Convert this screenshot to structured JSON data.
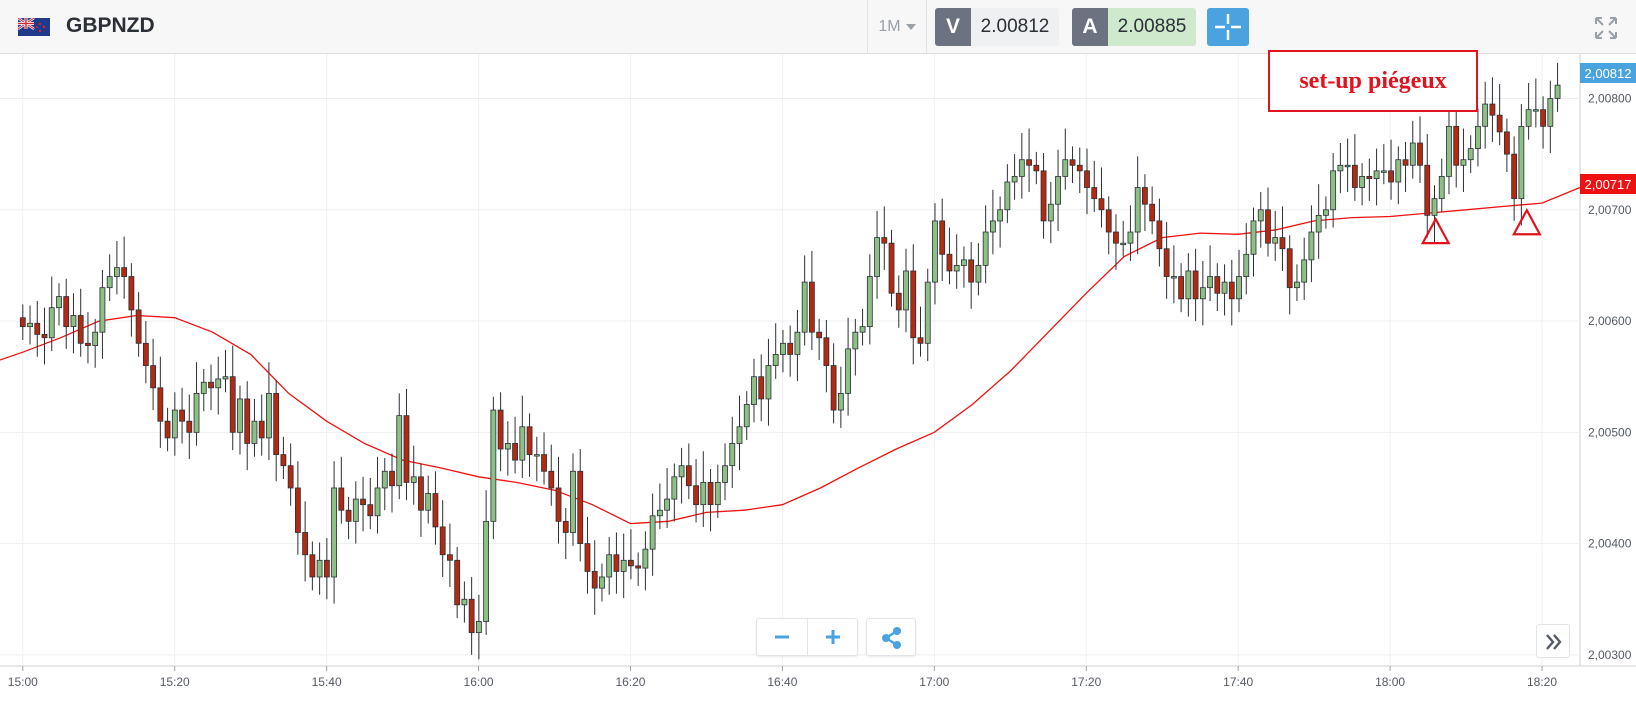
{
  "header": {
    "symbol": "GBPNZD",
    "flag_icon": "gb-nz-flag-icon",
    "timeframe": "1M",
    "sell_label": "V",
    "sell_price": "2.00812",
    "buy_label": "A",
    "buy_price": "2.00885"
  },
  "annotation": {
    "text": "set-up piégeux"
  },
  "price_labels": {
    "current": "2,00812",
    "ma": "2,00717"
  },
  "colors": {
    "bull": "#8cc084",
    "bear": "#b22a12",
    "ma_line": "#ee1111",
    "accent": "#4aa3df",
    "annotation": "#e0141e"
  },
  "chart_data": {
    "type": "candlestick",
    "title": "",
    "xlabel": "",
    "ylabel": "",
    "ylim": [
      2.0029,
      2.0084
    ],
    "y_ticks": [
      "2,00300",
      "2,00400",
      "2,00500",
      "2,00600",
      "2,00700",
      "2,00800"
    ],
    "y_tick_values": [
      2.003,
      2.004,
      2.005,
      2.006,
      2.007,
      2.008
    ],
    "x_ticks": [
      "15:00",
      "15:20",
      "15:40",
      "16:00",
      "16:20",
      "16:40",
      "17:00",
      "17:20",
      "17:40",
      "18:00",
      "18:20"
    ],
    "x_start_minute": 0,
    "x_tick_minutes": [
      0,
      20,
      40,
      60,
      80,
      100,
      120,
      140,
      160,
      180,
      200
    ],
    "x_range_minutes": [
      -3,
      205
    ],
    "grid": true,
    "close": [
      2.00595,
      2.00598,
      2.00588,
      2.00585,
      2.00612,
      2.00622,
      2.00595,
      2.00605,
      2.0058,
      2.00578,
      2.0059,
      2.0063,
      2.0064,
      2.00648,
      2.0064,
      2.0061,
      2.0058,
      2.0056,
      2.0054,
      2.0051,
      2.00495,
      2.0052,
      2.0051,
      2.005,
      2.00535,
      2.00545,
      2.0054,
      2.00548,
      2.0055,
      2.005,
      2.0053,
      2.0049,
      2.0051,
      2.00495,
      2.00535,
      2.0048,
      2.0047,
      2.0045,
      2.0041,
      2.0039,
      2.0037,
      2.00385,
      2.0037,
      2.0045,
      2.0043,
      2.0042,
      2.0044,
      2.00435,
      2.00425,
      2.0045,
      2.00465,
      2.00452,
      2.00515,
      2.00455,
      2.0046,
      2.0043,
      2.00445,
      2.00415,
      2.0039,
      2.00385,
      2.00345,
      2.0035,
      2.0032,
      2.0033,
      2.0042,
      2.0052,
      2.00485,
      2.0049,
      2.00475,
      2.00505,
      2.0048,
      2.0048,
      2.00465,
      2.0045,
      2.0042,
      2.0041,
      2.00465,
      2.004,
      2.00375,
      2.0036,
      2.0037,
      2.0039,
      2.00375,
      2.00385,
      2.0038,
      2.00378,
      2.00395,
      2.00425,
      2.0043,
      2.0044,
      2.0046,
      2.0047,
      2.00452,
      2.00435,
      2.00455,
      2.00435,
      2.00455,
      2.0047,
      2.0049,
      2.00505,
      2.00525,
      2.0055,
      2.0053,
      2.0056,
      2.0057,
      2.0058,
      2.0057,
      2.0059,
      2.00635,
      2.0059,
      2.00585,
      2.0056,
      2.0052,
      2.00535,
      2.00575,
      2.0059,
      2.00595,
      2.0064,
      2.00675,
      2.0067,
      2.00625,
      2.0061,
      2.00645,
      2.00585,
      2.0058,
      2.00635,
      2.0069,
      2.0066,
      2.00645,
      2.0065,
      2.00655,
      2.00635,
      2.0065,
      2.0068,
      2.0069,
      2.007,
      2.00725,
      2.0073,
      2.00745,
      2.0074,
      2.00735,
      2.0069,
      2.00705,
      2.0073,
      2.00745,
      2.0074,
      2.00735,
      2.0072,
      2.0071,
      2.007,
      2.0068,
      2.0067,
      2.0067,
      2.0068,
      2.0072,
      2.00705,
      2.0069,
      2.00665,
      2.0064,
      2.0064,
      2.0062,
      2.00645,
      2.0062,
      2.0063,
      2.0064,
      2.00625,
      2.00635,
      2.0062,
      2.0064,
      2.0066,
      2.0069,
      2.007,
      2.0067,
      2.00675,
      2.00665,
      2.0063,
      2.00635,
      2.00655,
      2.0068,
      2.00695,
      2.007,
      2.00735,
      2.0074,
      2.0074,
      2.0072,
      2.0073,
      2.00728,
      2.00735,
      2.00735,
      2.00725,
      2.00745,
      2.0074,
      2.0076,
      2.0074,
      2.00695,
      2.0071,
      2.0073,
      2.00775,
      2.0074,
      2.00745,
      2.00755,
      2.00775,
      2.00795,
      2.00785,
      2.0077,
      2.0075,
      2.0071,
      2.00775,
      2.0079,
      2.0079,
      2.00775,
      2.008,
      2.00812
    ],
    "ma_series": {
      "minutes": [
        -3,
        0,
        5,
        10,
        15,
        20,
        25,
        30,
        35,
        40,
        45,
        50,
        55,
        60,
        65,
        70,
        75,
        80,
        85,
        90,
        95,
        100,
        105,
        110,
        115,
        120,
        125,
        130,
        135,
        140,
        145,
        150,
        155,
        160,
        165,
        170,
        175,
        180,
        185,
        190,
        195,
        200,
        205
      ],
      "values": [
        2.00565,
        2.00572,
        2.00585,
        2.006,
        2.00605,
        2.00603,
        2.0059,
        2.0057,
        2.00535,
        2.0051,
        2.0049,
        2.00475,
        2.00468,
        2.0046,
        2.00455,
        2.00448,
        2.00435,
        2.00418,
        2.0042,
        2.00428,
        2.0043,
        2.00435,
        2.0045,
        2.00468,
        2.00485,
        2.005,
        2.00525,
        2.00555,
        2.0059,
        2.00625,
        2.00658,
        2.00675,
        2.00679,
        2.00678,
        2.00682,
        2.0069,
        2.00693,
        2.00694,
        2.00697,
        2.007,
        2.00703,
        2.00706,
        2.0072
      ]
    },
    "series": [
      {
        "name": "",
        "type": "candlestick"
      },
      {
        "name": "",
        "type": "line"
      }
    ],
    "markers": [
      {
        "shape": "triangle-up",
        "minute": 186,
        "price": 2.00688
      },
      {
        "shape": "triangle-up",
        "minute": 198,
        "price": 2.00696
      }
    ]
  }
}
